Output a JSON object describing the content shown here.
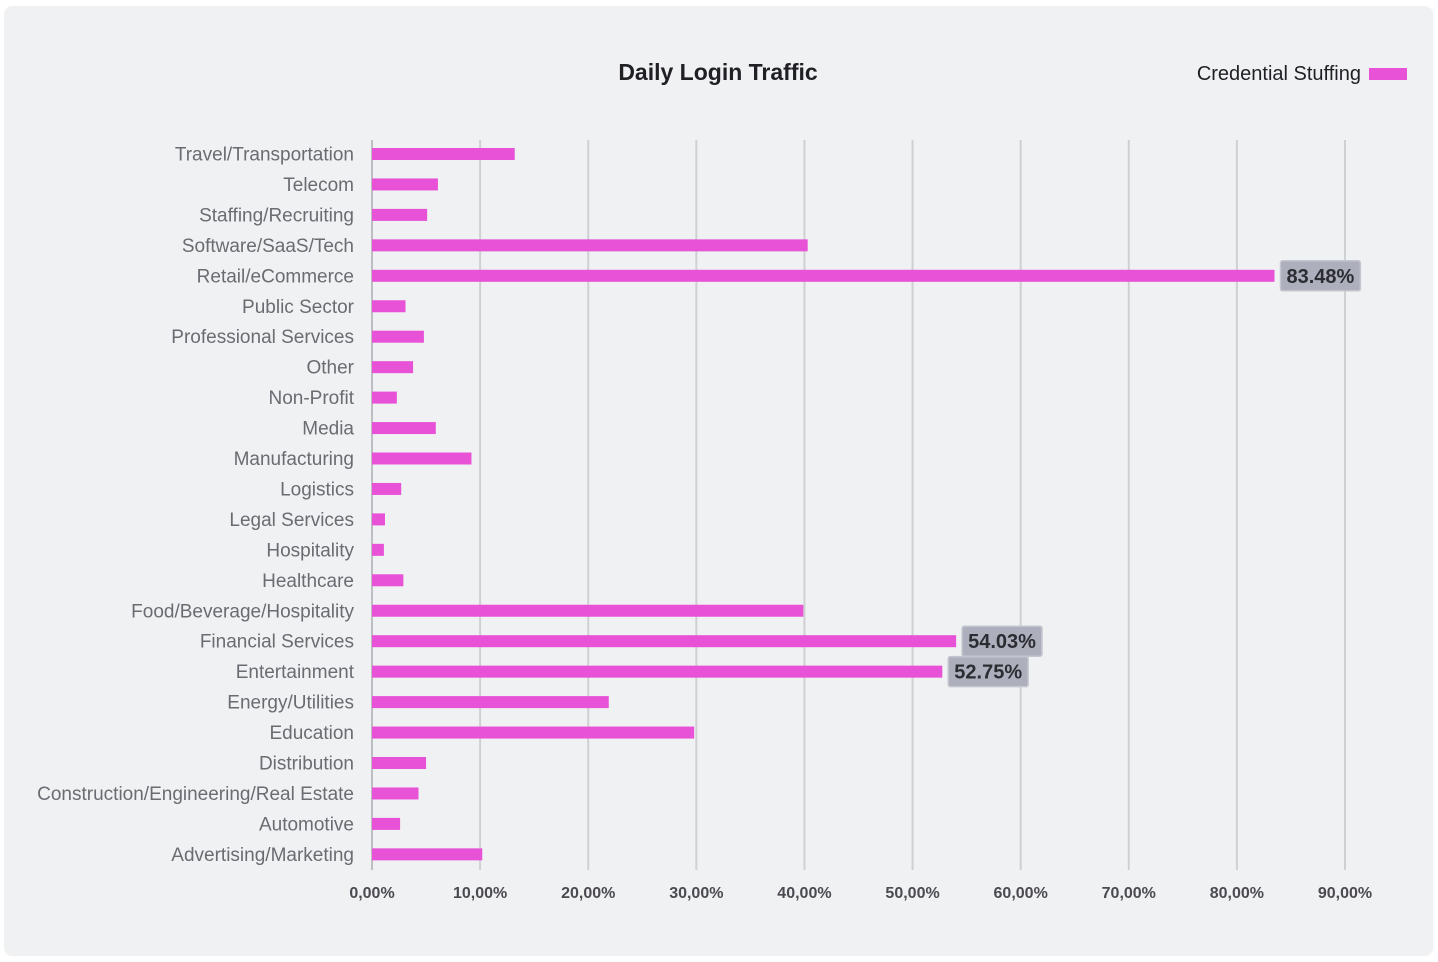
{
  "chart_data": {
    "type": "bar",
    "orientation": "horizontal",
    "title": "Daily Login Traffic",
    "legend": {
      "label": "Credential Stuffing",
      "position": "top-right"
    },
    "color": "#e752d6",
    "xlim": [
      0,
      90
    ],
    "ticks": [
      0,
      10,
      20,
      30,
      40,
      50,
      60,
      70,
      80,
      90
    ],
    "tick_labels": [
      "0,00%",
      "10,00%",
      "20,00%",
      "30,00%",
      "40,00%",
      "50,00%",
      "60,00%",
      "70,00%",
      "80,00%",
      "90,00%"
    ],
    "grid": true,
    "categories": [
      "Travel/Transportation",
      "Telecom",
      "Staffing/Recruiting",
      "Software/SaaS/Tech",
      "Retail/eCommerce",
      "Public Sector",
      "Professional Services",
      "Other",
      "Non-Profit",
      "Media",
      "Manufacturing",
      "Logistics",
      "Legal Services",
      "Hospitality",
      "Healthcare",
      "Food/Beverage/Hospitality",
      "Financial Services",
      "Entertainment",
      "Energy/Utilities",
      "Education",
      "Distribution",
      "Construction/Engineering/Real Estate",
      "Automotive",
      "Advertising/Marketing"
    ],
    "values": [
      13.2,
      6.1,
      5.1,
      40.3,
      83.48,
      3.1,
      4.8,
      3.8,
      2.3,
      5.9,
      9.2,
      2.7,
      1.2,
      1.1,
      2.9,
      39.9,
      54.03,
      52.75,
      21.9,
      29.8,
      5.0,
      4.3,
      2.6,
      10.2
    ],
    "data_labels": [
      {
        "index": 4,
        "text": "83.48%"
      },
      {
        "index": 16,
        "text": "54.03%"
      },
      {
        "index": 17,
        "text": "52.75%"
      }
    ]
  }
}
